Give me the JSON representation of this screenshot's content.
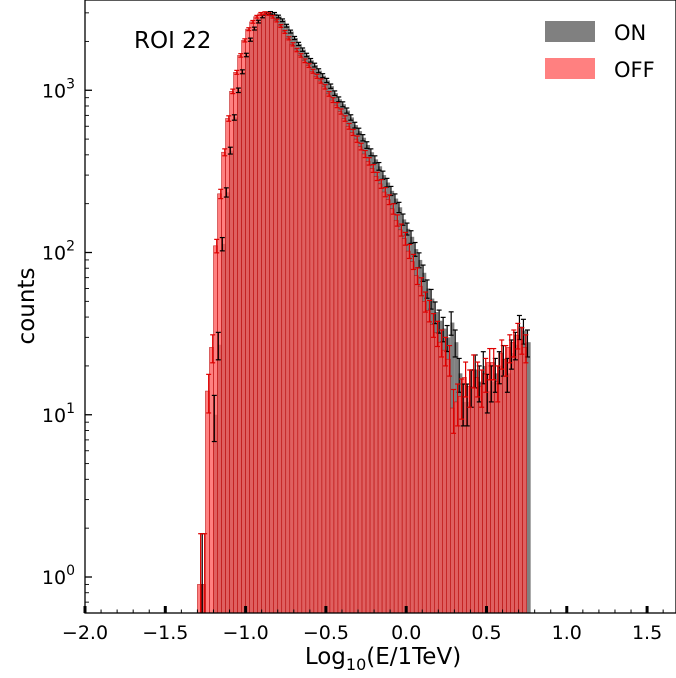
{
  "chart_data": {
    "type": "bar",
    "annotation": "ROI 22",
    "xlabel": "Log10(E/1TeV)",
    "xlabel_parts": {
      "base": "Log",
      "sub": "10",
      "rest": "(E/1TeV)"
    },
    "ylabel": "counts",
    "xlim": [
      -2.0,
      1.68
    ],
    "ylim": [
      0.6,
      3600
    ],
    "yscale": "log",
    "x_ticks": [
      "−2.0",
      "−1.5",
      "−1.0",
      "−0.5",
      "0.0",
      "0.5",
      "1.0",
      "1.5"
    ],
    "x_tick_values": [
      -2.0,
      -1.5,
      -1.0,
      -0.5,
      0.0,
      0.5,
      1.0,
      1.5
    ],
    "y_ticks": [
      {
        "value": 1,
        "base": "10",
        "exp": "0"
      },
      {
        "value": 10,
        "base": "10",
        "exp": "1"
      },
      {
        "value": 100,
        "base": "10",
        "exp": "2"
      },
      {
        "value": 1000,
        "base": "10",
        "exp": "3"
      }
    ],
    "legend_position": "top-right",
    "bin_width": 0.025,
    "x_start": -1.3,
    "series": [
      {
        "name": "ON",
        "color": "#555555",
        "opacity": 0.75,
        "values": [
          0,
          0.9,
          0,
          0,
          10,
          27,
          113,
          235,
          425,
          680,
          1000,
          1300,
          1650,
          2050,
          2400,
          2650,
          2850,
          2980,
          3000,
          2960,
          2850,
          2700,
          2500,
          2300,
          2100,
          1930,
          1780,
          1650,
          1530,
          1430,
          1320,
          1230,
          1150,
          1060,
          960,
          880,
          820,
          750,
          680,
          610,
          560,
          510,
          460,
          415,
          375,
          340,
          300,
          270,
          240,
          215,
          190,
          160,
          140,
          125,
          105,
          90,
          75,
          60,
          52,
          43,
          38,
          34,
          30,
          37,
          28,
          18,
          12,
          12,
          15,
          19,
          16,
          20,
          14,
          16,
          18,
          20,
          22,
          18,
          24,
          27,
          35,
          33,
          28
        ]
      },
      {
        "name": "OFF",
        "color": "#ff5555",
        "opacity": 0.75,
        "values": [
          0.9,
          0.9,
          14,
          26,
          110,
          230,
          415,
          670,
          985,
          1290,
          1640,
          2030,
          2380,
          2640,
          2840,
          2960,
          2990,
          2950,
          2840,
          2690,
          2490,
          2290,
          2090,
          1920,
          1770,
          1640,
          1520,
          1420,
          1310,
          1220,
          1140,
          1050,
          950,
          870,
          810,
          740,
          670,
          600,
          550,
          500,
          450,
          405,
          365,
          330,
          295,
          265,
          236,
          212,
          186,
          158,
          138,
          122,
          102,
          88,
          72,
          62,
          50,
          44,
          36,
          32,
          28,
          25,
          22,
          11,
          12,
          13,
          17,
          15,
          19,
          17,
          15,
          18,
          21,
          21,
          16,
          24,
          22,
          26,
          28,
          31,
          29,
          26
        ]
      }
    ]
  }
}
